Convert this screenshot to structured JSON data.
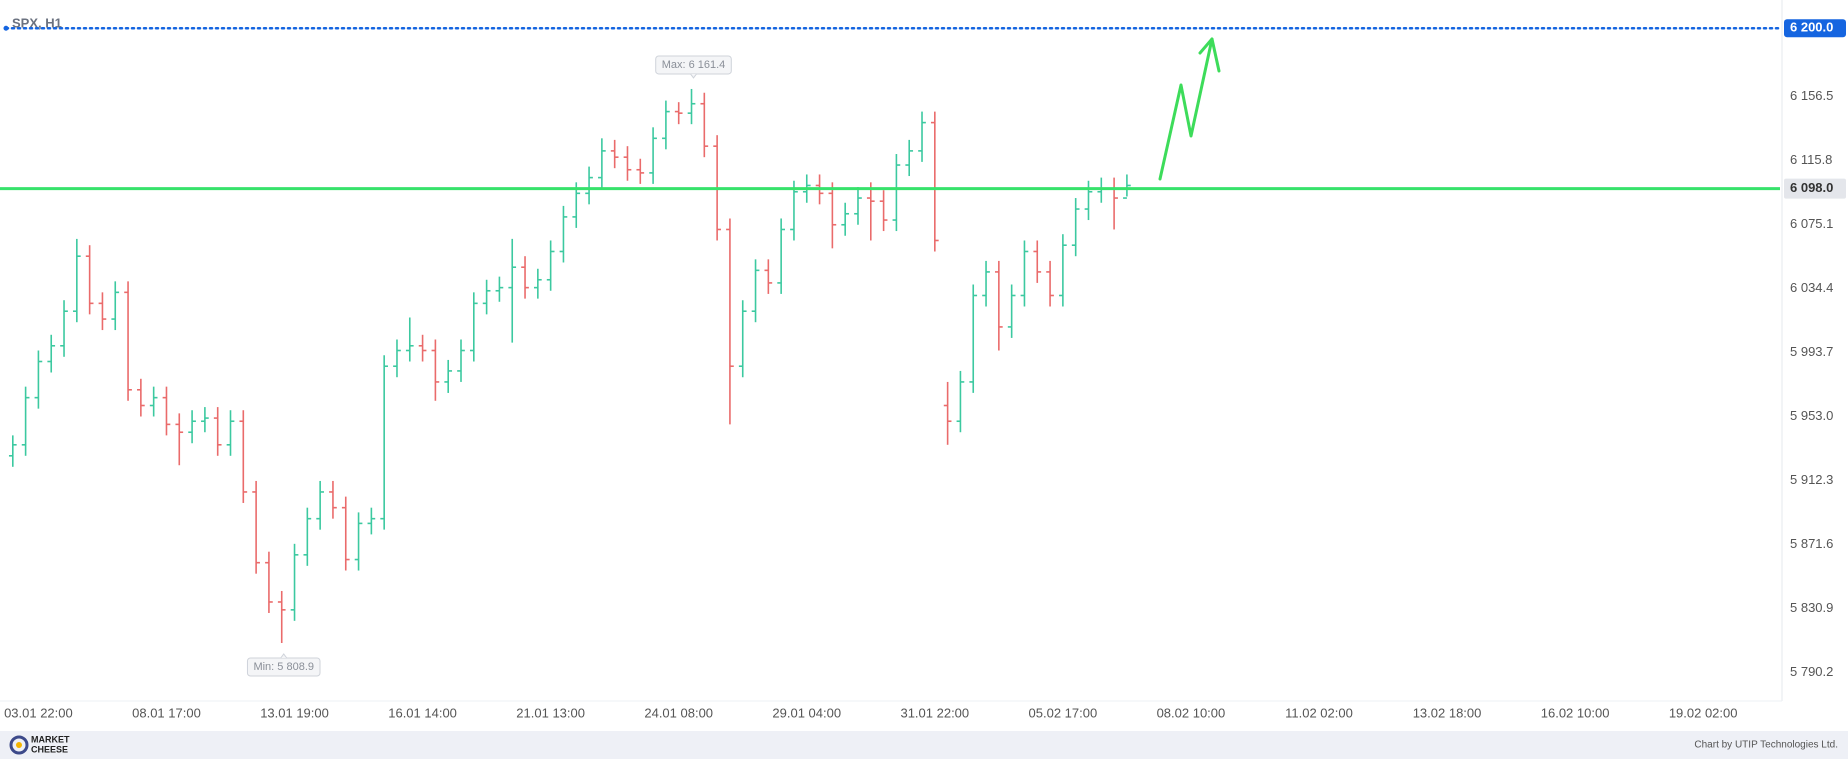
{
  "chart_data": {
    "type": "ohlc",
    "title": "SPX, H1",
    "colors": {
      "up": "#3cc9a0",
      "down": "#ea6b6b"
    },
    "grid": false,
    "x": [
      0,
      1,
      2,
      3,
      4,
      5,
      6,
      7,
      8,
      9,
      10,
      11,
      12,
      13,
      14,
      15,
      16,
      17,
      18,
      19,
      20,
      21,
      22,
      23,
      24,
      25,
      26,
      27,
      28,
      29,
      30,
      31,
      32,
      33,
      34,
      35,
      36,
      37,
      38,
      39,
      40,
      41,
      42,
      43,
      44,
      45,
      46,
      47,
      48,
      49,
      50,
      51,
      52,
      53,
      54,
      55,
      56,
      57,
      58,
      59,
      60,
      61,
      62,
      63,
      64,
      65,
      66,
      67,
      68,
      69,
      70,
      71,
      72,
      73,
      74,
      75,
      76,
      77,
      78,
      79,
      80,
      81,
      82,
      83,
      84,
      85,
      86,
      87
    ],
    "open": [
      5928,
      5935,
      5965,
      5988,
      5998,
      6020,
      6055,
      6025,
      6015,
      6032,
      5970,
      5960,
      5965,
      5948,
      5943,
      5950,
      5952,
      5935,
      5950,
      5905,
      5860,
      5835,
      5830,
      5865,
      5888,
      5905,
      5895,
      5862,
      5885,
      5888,
      5985,
      5995,
      5998,
      5995,
      5975,
      5982,
      5995,
      6025,
      6033,
      6035,
      6048,
      6035,
      6040,
      6058,
      6080,
      6095,
      6105,
      6122,
      6118,
      6110,
      6108,
      6130,
      6147,
      6146,
      6152,
      6125,
      6072,
      5985,
      6020,
      6046,
      6038,
      6072,
      6096,
      6100,
      6095,
      6075,
      6082,
      6092,
      6090,
      6078,
      6113,
      6122,
      6140,
      5960,
      5950,
      5975,
      6030,
      6045,
      6010,
      6030,
      6058,
      6045,
      6030,
      6062,
      6085,
      6096,
      6098,
      6092
    ],
    "high": [
      5941,
      5972,
      5995,
      6005,
      6027,
      6066,
      6062,
      6032,
      6039,
      6039,
      5977,
      5972,
      5972,
      5955,
      5957,
      5959,
      5959,
      5957,
      5957,
      5912,
      5867,
      5842,
      5872,
      5895,
      5912,
      5912,
      5902,
      5892,
      5895,
      5992,
      6002,
      6016,
      6005,
      6002,
      5989,
      6002,
      6032,
      6040,
      6042,
      6066,
      6055,
      6047,
      6065,
      6087,
      6102,
      6112,
      6130,
      6129,
      6125,
      6117,
      6137,
      6154,
      6153,
      6161.4,
      6159,
      6132,
      6079,
      6027,
      6053,
      6053,
      6079,
      6103,
      6107,
      6107,
      6102,
      6089,
      6099,
      6102,
      6097,
      6120,
      6129,
      6147,
      6147,
      5975,
      5982,
      6037,
      6052,
      6052,
      6037,
      6065,
      6065,
      6052,
      6069,
      6092,
      6103,
      6105,
      6105,
      6107
    ],
    "low": [
      5921,
      5928,
      5958,
      5981,
      5991,
      6013,
      6018,
      6008,
      6008,
      5963,
      5953,
      5953,
      5941,
      5922,
      5936,
      5943,
      5928,
      5928,
      5898,
      5853,
      5828,
      5808.9,
      5823,
      5858,
      5881,
      5888,
      5855,
      5855,
      5878,
      5881,
      5978,
      5988,
      5988,
      5963,
      5968,
      5975,
      5988,
      6018,
      6026,
      6000,
      6028,
      6028,
      6033,
      6051,
      6073,
      6088,
      6098,
      6111,
      6103,
      6101,
      6101,
      6123,
      6139,
      6139,
      6118,
      6065,
      5948,
      5978,
      6013,
      6031,
      6031,
      6065,
      6089,
      6088,
      6060,
      6068,
      6075,
      6065,
      6071,
      6071,
      6106,
      6115,
      6058,
      5935,
      5943,
      5968,
      6023,
      5995,
      6003,
      6023,
      6038,
      6023,
      6023,
      6055,
      6078,
      6089,
      6072,
      6093
    ],
    "close": [
      5935,
      5965,
      5988,
      5998,
      6020,
      6055,
      6025,
      6015,
      6032,
      5970,
      5960,
      5965,
      5948,
      5943,
      5950,
      5952,
      5935,
      5950,
      5905,
      5860,
      5835,
      5830,
      5865,
      5888,
      5905,
      5895,
      5862,
      5885,
      5888,
      5985,
      5995,
      5998,
      5995,
      5975,
      5982,
      5995,
      6025,
      6033,
      6035,
      6048,
      6035,
      6040,
      6058,
      6080,
      6095,
      6105,
      6122,
      6118,
      6110,
      6108,
      6130,
      6147,
      6146,
      6152,
      6125,
      6072,
      5985,
      6020,
      6046,
      6038,
      6072,
      6096,
      6100,
      6095,
      6075,
      6082,
      6092,
      6090,
      6078,
      6113,
      6122,
      6140,
      6065,
      5950,
      5975,
      6030,
      6045,
      6010,
      6030,
      6058,
      6045,
      6030,
      6062,
      6085,
      6096,
      6098,
      6092,
      6100
    ],
    "xlim": [
      -1,
      138
    ],
    "xticks": [
      {
        "value": 2,
        "label": "03.01 22:00"
      },
      {
        "value": 12,
        "label": "08.01 17:00"
      },
      {
        "value": 22,
        "label": "13.01 19:00"
      },
      {
        "value": 32,
        "label": "16.01 14:00"
      },
      {
        "value": 42,
        "label": "21.01 13:00"
      },
      {
        "value": 52,
        "label": "24.01 08:00"
      },
      {
        "value": 62,
        "label": "29.01 04:00"
      },
      {
        "value": 72,
        "label": "31.01 22:00"
      },
      {
        "value": 82,
        "label": "05.02 17:00"
      },
      {
        "value": 92,
        "label": "08.02 10:00"
      },
      {
        "value": 102,
        "label": "11.02 02:00"
      },
      {
        "value": 112,
        "label": "13.02 18:00"
      },
      {
        "value": 122,
        "label": "16.02 10:00"
      },
      {
        "value": 132,
        "label": "19.02 02:00"
      }
    ],
    "ylim": [
      5772,
      6218
    ],
    "yticks": [
      {
        "value": 5790.2,
        "label": "5 790.2"
      },
      {
        "value": 5830.9,
        "label": "5 830.9"
      },
      {
        "value": 5871.6,
        "label": "5 871.6"
      },
      {
        "value": 5912.3,
        "label": "5 912.3"
      },
      {
        "value": 5953.0,
        "label": "5 953.0"
      },
      {
        "value": 5993.7,
        "label": "5 993.7"
      },
      {
        "value": 6034.4,
        "label": "6 034.4"
      },
      {
        "value": 6075.1,
        "label": "6 075.1"
      },
      {
        "value": 6115.8,
        "label": "6 115.8"
      },
      {
        "value": 6156.5,
        "label": "6 156.5"
      }
    ],
    "levels": [
      {
        "value": 6200.0,
        "label": "6 200.0",
        "color": "#1565e0",
        "style": "dotted"
      },
      {
        "value": 6098.0,
        "label": "6 098.0",
        "color": "#37e26b",
        "style": "solid"
      }
    ],
    "annotations": [
      {
        "text": "Max: 6 161.4",
        "value": 6161.4,
        "x": 53,
        "side": "above"
      },
      {
        "text": "Min: 5 808.9",
        "value": 5808.9,
        "x": 21,
        "side": "below"
      }
    ]
  },
  "footer": {
    "brand": [
      "MARKET",
      "CHEESE"
    ],
    "credit": "Chart by UTIP Technologies Ltd."
  }
}
